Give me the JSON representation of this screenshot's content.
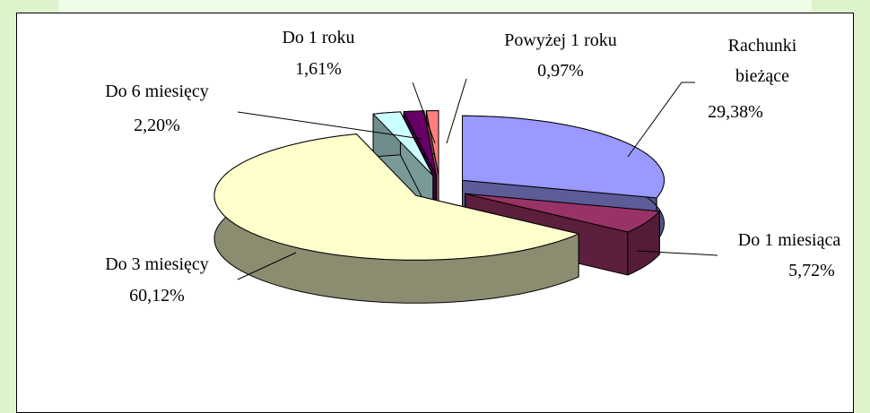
{
  "chart_data": {
    "type": "pie3d",
    "categories": [
      "Rachunki bieżące",
      "Do 1 miesiąca",
      "Do 3 miesięcy",
      "Do 6 miesięcy",
      "Do 1 roku",
      "Powyżej 1 roku"
    ],
    "values": [
      29.38,
      5.72,
      60.12,
      2.2,
      1.61,
      0.97
    ],
    "value_labels": [
      "29,38%",
      "5,72%",
      "60,12%",
      "2,20%",
      "1,61%",
      "0,97%"
    ],
    "colors": [
      "#9999ff",
      "#993366",
      "#ffffcc",
      "#ccffff",
      "#660066",
      "#ff8080"
    ]
  }
}
